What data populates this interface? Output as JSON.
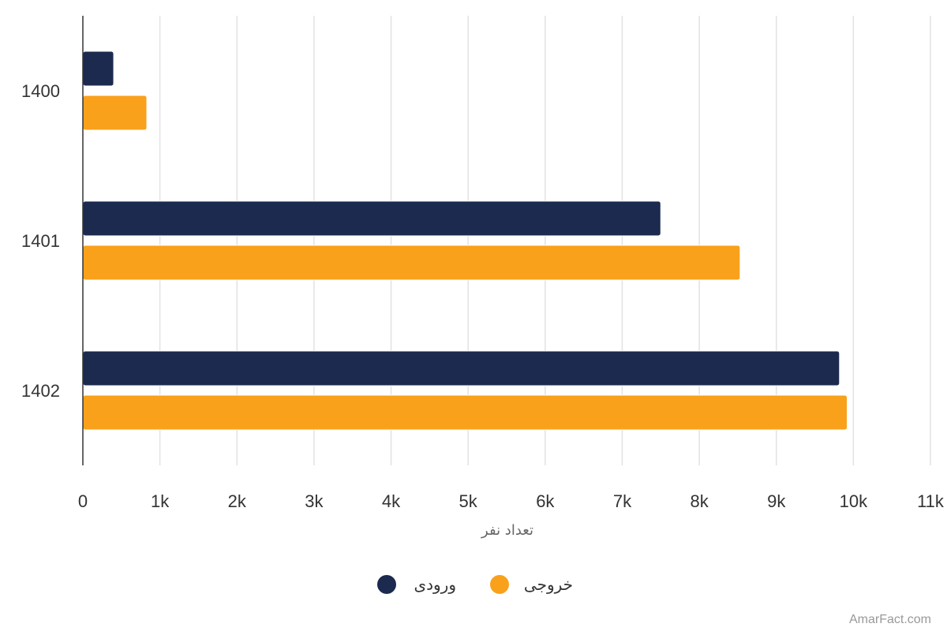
{
  "chart_data": {
    "type": "bar",
    "orientation": "horizontal",
    "categories": [
      "1400",
      "1401",
      "1402"
    ],
    "series": [
      {
        "name": "ورودی",
        "values": [
          400,
          7500,
          9820
        ],
        "color": "#1b2a4e"
      },
      {
        "name": "خروجی",
        "values": [
          830,
          8530,
          9920
        ],
        "color": "#f9a11b"
      }
    ],
    "xlabel": "تعداد نفر",
    "xlim": [
      0,
      11000
    ],
    "x_ticks": [
      {
        "value": 0,
        "label": "0"
      },
      {
        "value": 1000,
        "label": "1k"
      },
      {
        "value": 2000,
        "label": "2k"
      },
      {
        "value": 3000,
        "label": "3k"
      },
      {
        "value": 4000,
        "label": "4k"
      },
      {
        "value": 5000,
        "label": "5k"
      },
      {
        "value": 6000,
        "label": "6k"
      },
      {
        "value": 7000,
        "label": "7k"
      },
      {
        "value": 8000,
        "label": "8k"
      },
      {
        "value": 9000,
        "label": "9k"
      },
      {
        "value": 10000,
        "label": "10k"
      },
      {
        "value": 11000,
        "label": "11k"
      }
    ],
    "grid": true,
    "legend_position": "bottom-center",
    "credit": "AmarFact.com"
  }
}
